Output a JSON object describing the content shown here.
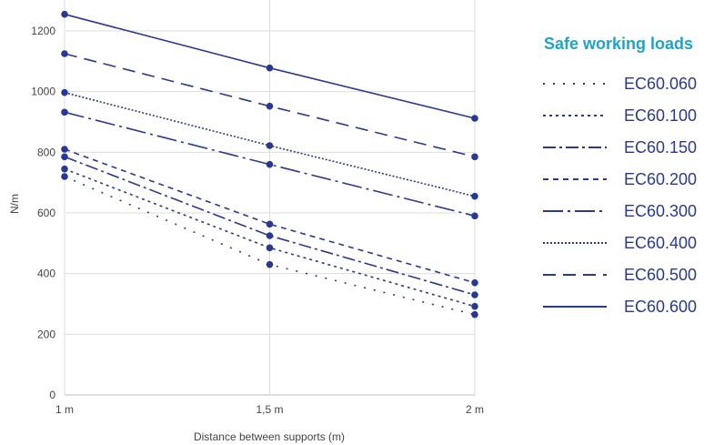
{
  "chart_data": {
    "type": "line",
    "title": "",
    "xlabel": "Distance between supports (m)",
    "ylabel": "N/m",
    "categories": [
      "1 m",
      "1,5 m",
      "2 m"
    ],
    "x": [
      1,
      1.5,
      2
    ],
    "ylim": [
      0,
      1250
    ],
    "yticks": [
      0,
      200,
      400,
      600,
      800,
      1000,
      1200
    ],
    "grid": true,
    "legend_title": "Safe working loads",
    "legend_position": "right",
    "line_color": "#2a3990",
    "series": [
      {
        "name": "EC60.060",
        "style": "dotted-wide",
        "values": [
          720,
          430,
          265
        ]
      },
      {
        "name": "EC60.100",
        "style": "dotted-short-dash",
        "values": [
          745,
          485,
          292
        ]
      },
      {
        "name": "EC60.150",
        "style": "dash-dot",
        "values": [
          785,
          525,
          330
        ]
      },
      {
        "name": "EC60.200",
        "style": "short-dash",
        "values": [
          810,
          563,
          370
        ]
      },
      {
        "name": "EC60.300",
        "style": "long-dash-dot",
        "values": [
          932,
          760,
          590
        ]
      },
      {
        "name": "EC60.400",
        "style": "dense-dot",
        "values": [
          997,
          822,
          655
        ]
      },
      {
        "name": "EC60.500",
        "style": "long-dash",
        "values": [
          1125,
          952,
          785
        ]
      },
      {
        "name": "EC60.600",
        "style": "solid",
        "values": [
          1255,
          1078,
          912
        ]
      }
    ]
  }
}
